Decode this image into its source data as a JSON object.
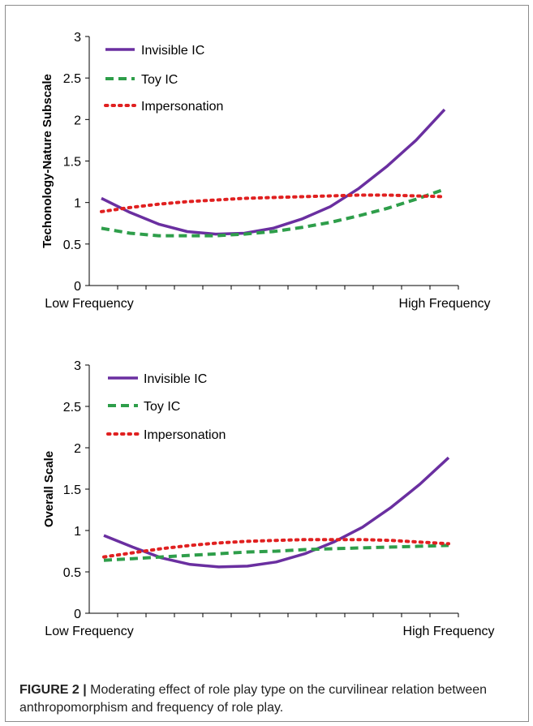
{
  "chart_data": [
    {
      "type": "line",
      "ylabel": "Techonology-Nature Subscale",
      "xlabel": "",
      "x_tick_labels": [
        "Low Frequency",
        "High Frequency"
      ],
      "ylim": [
        0,
        3
      ],
      "yticks": [
        "0",
        "0.5",
        "1",
        "1.5",
        "2",
        "2.5",
        "3"
      ],
      "x": [
        1,
        2,
        3,
        4,
        5,
        6,
        7,
        8,
        9,
        10,
        11,
        12,
        13
      ],
      "legend_position": "top-left",
      "series": [
        {
          "name": "Invisible IC",
          "color": "#6a2fa0",
          "style": "solid",
          "values": [
            1.05,
            0.88,
            0.74,
            0.65,
            0.62,
            0.63,
            0.69,
            0.8,
            0.95,
            1.17,
            1.44,
            1.75,
            2.12
          ]
        },
        {
          "name": "Toy IC",
          "color": "#2e9e4a",
          "style": "dashed",
          "values": [
            0.69,
            0.63,
            0.6,
            0.6,
            0.6,
            0.62,
            0.65,
            0.7,
            0.76,
            0.84,
            0.93,
            1.04,
            1.16
          ]
        },
        {
          "name": "Impersonation",
          "color": "#e02020",
          "style": "dotted",
          "values": [
            0.89,
            0.94,
            0.98,
            1.01,
            1.03,
            1.05,
            1.06,
            1.07,
            1.08,
            1.09,
            1.09,
            1.08,
            1.07
          ]
        }
      ]
    },
    {
      "type": "line",
      "ylabel": "Overall Scale",
      "xlabel": "",
      "x_tick_labels": [
        "Low Frequency",
        "High Frequency"
      ],
      "ylim": [
        0,
        3
      ],
      "yticks": [
        "0",
        "0.5",
        "1",
        "1.5",
        "2",
        "2.5",
        "3"
      ],
      "x": [
        1,
        2,
        3,
        4,
        5,
        6,
        7,
        8,
        9,
        10,
        11,
        12,
        13
      ],
      "legend_position": "top-left",
      "series": [
        {
          "name": "Invisible IC",
          "color": "#6a2fa0",
          "style": "solid",
          "values": [
            0.94,
            0.8,
            0.67,
            0.59,
            0.56,
            0.57,
            0.62,
            0.72,
            0.86,
            1.04,
            1.28,
            1.56,
            1.88
          ]
        },
        {
          "name": "Toy IC",
          "color": "#2e9e4a",
          "style": "dashed",
          "values": [
            0.64,
            0.66,
            0.68,
            0.7,
            0.72,
            0.74,
            0.75,
            0.77,
            0.78,
            0.79,
            0.8,
            0.81,
            0.82
          ]
        },
        {
          "name": "Impersonation",
          "color": "#e02020",
          "style": "dotted",
          "values": [
            0.68,
            0.73,
            0.78,
            0.82,
            0.85,
            0.87,
            0.88,
            0.89,
            0.89,
            0.89,
            0.88,
            0.86,
            0.84
          ]
        }
      ]
    }
  ],
  "caption": {
    "label": "FIGURE 2 |",
    "text": " Moderating effect of role play type on the curvilinear relation between anthropomorphism and frequency of role play."
  }
}
